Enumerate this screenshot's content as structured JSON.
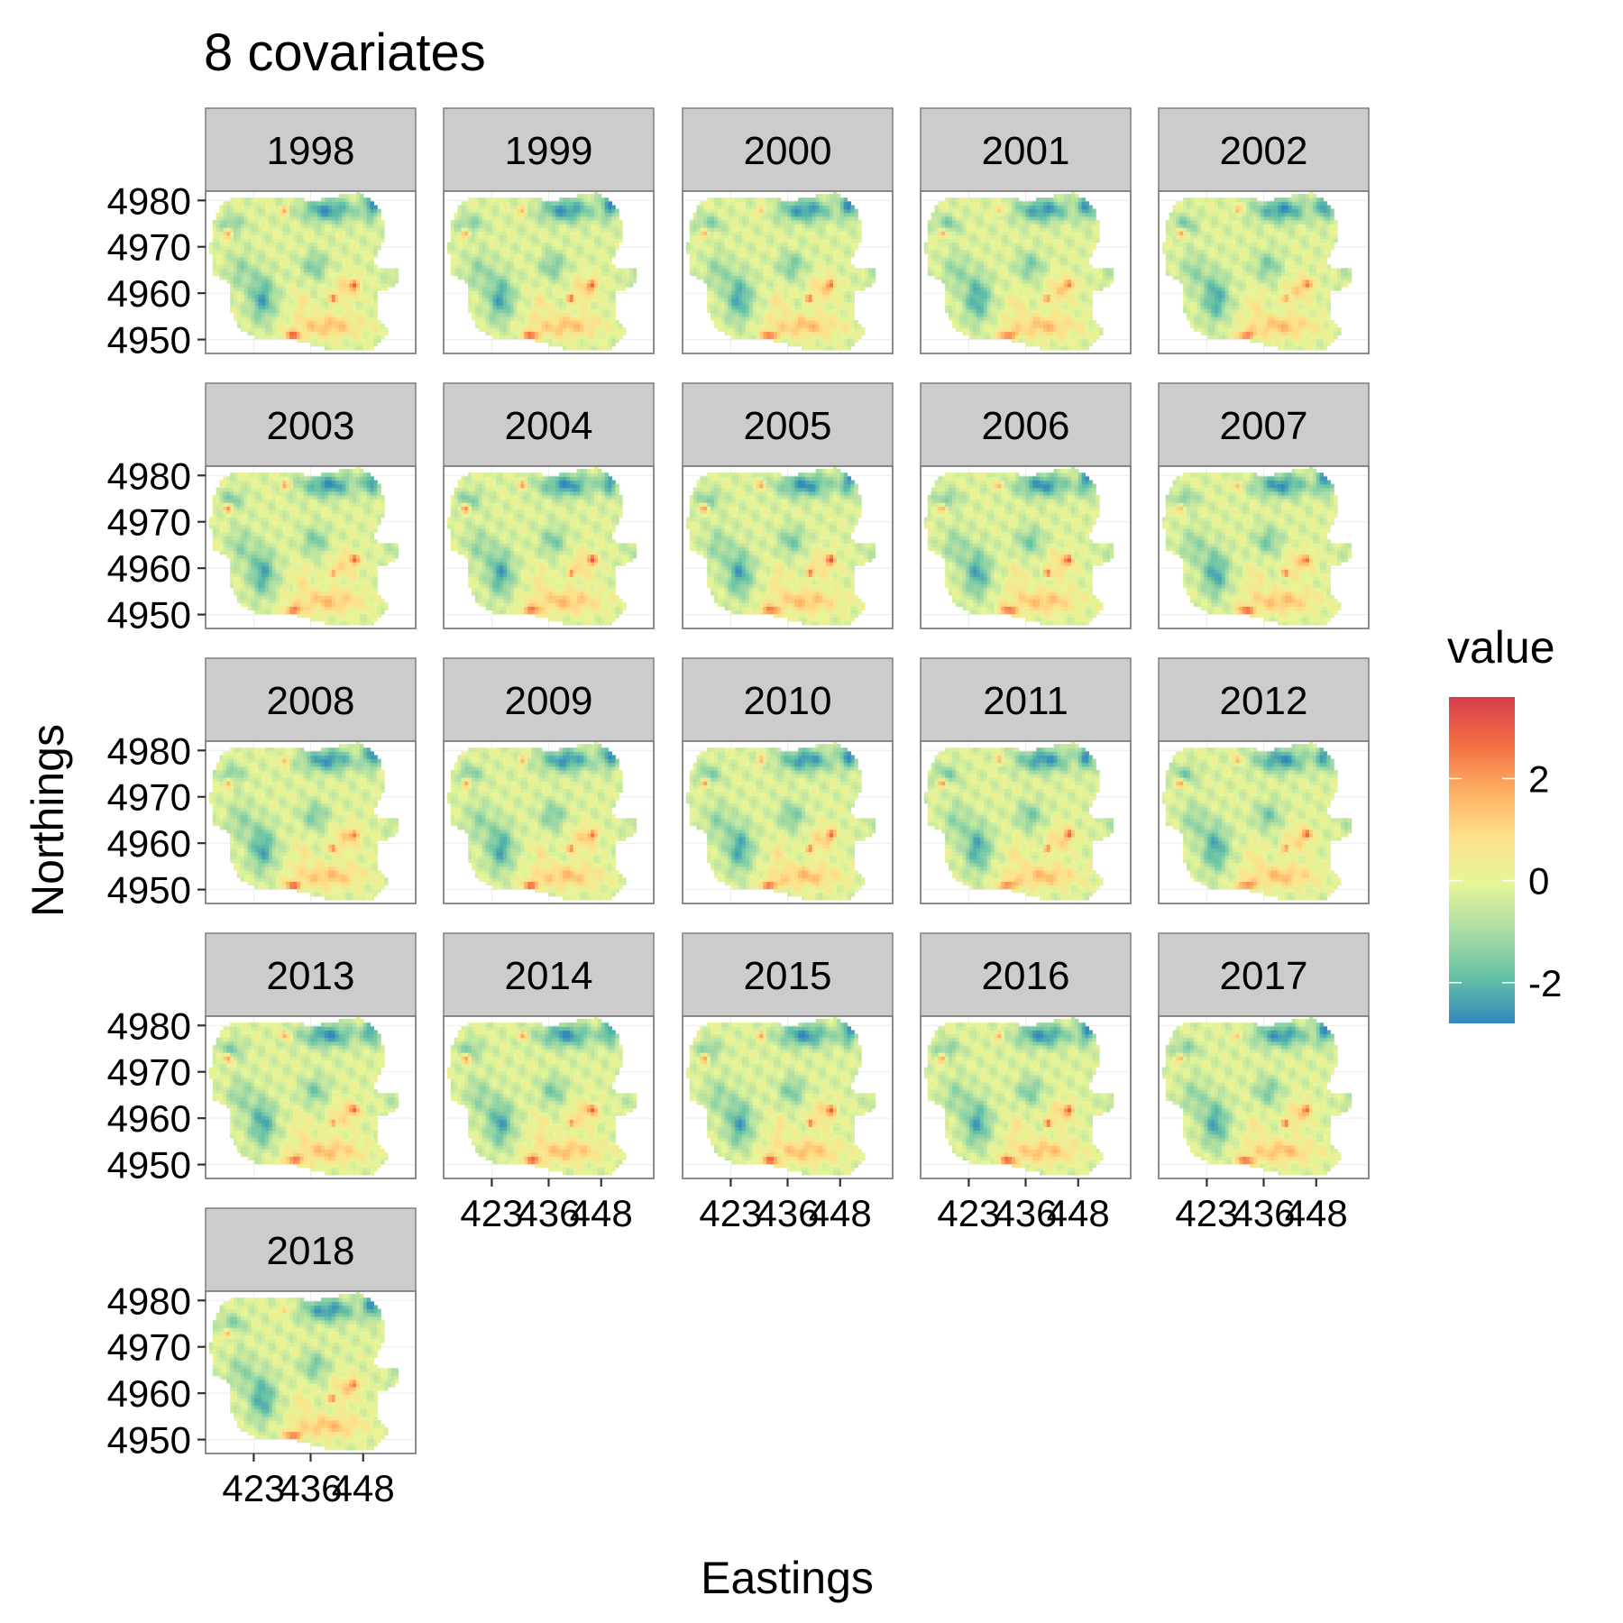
{
  "chart_data": {
    "type": "heatmap",
    "title": "8 covariates",
    "xlabel": "Eastings",
    "ylabel": "Northings",
    "facets": [
      "1998",
      "1999",
      "2000",
      "2001",
      "2002",
      "2003",
      "2004",
      "2005",
      "2006",
      "2007",
      "2008",
      "2009",
      "2010",
      "2011",
      "2012",
      "2013",
      "2014",
      "2015",
      "2016",
      "2017",
      "2018"
    ],
    "ncol": 5,
    "xlim": [
      412,
      460
    ],
    "ylim": [
      4947,
      4982
    ],
    "xticks": [
      423,
      436,
      448
    ],
    "xtick_labels": [
      "423",
      "436",
      "448"
    ],
    "yticks": [
      4950,
      4960,
      4970,
      4980
    ],
    "ytick_labels": [
      "4950",
      "4960",
      "4970",
      "4980"
    ],
    "legend": {
      "title": "value",
      "position": "right",
      "range": [
        -2.8,
        3.6
      ],
      "ticks": [
        -2,
        0,
        2
      ],
      "tick_labels": [
        "-2",
        "0",
        "2"
      ],
      "colors": [
        "#3288bd",
        "#66c2a5",
        "#abdda4",
        "#e6f598",
        "#fee08b",
        "#fdae61",
        "#f46d43",
        "#d53e4f"
      ]
    },
    "grid": true
  }
}
